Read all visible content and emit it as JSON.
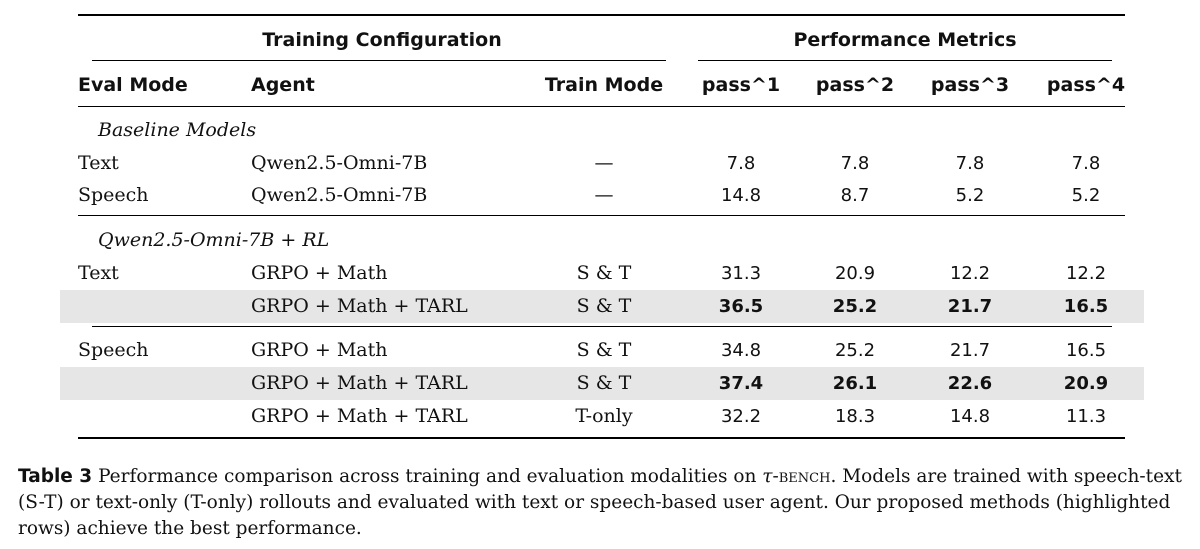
{
  "table": {
    "group_headers": [
      "Training Configuration",
      "Performance Metrics"
    ],
    "columns": [
      "Eval Mode",
      "Agent",
      "Train Mode",
      "pass^1",
      "pass^2",
      "pass^3",
      "pass^4"
    ],
    "sections": [
      {
        "title": "Baseline Models",
        "rows": [
          {
            "eval_mode": "Text",
            "agent": "Qwen2.5-Omni-7B",
            "train_mode": "—",
            "pass1": "7.8",
            "pass2": "7.8",
            "pass3": "7.8",
            "pass4": "7.8",
            "highlighted": false
          },
          {
            "eval_mode": "Speech",
            "agent": "Qwen2.5-Omni-7B",
            "train_mode": "—",
            "pass1": "14.8",
            "pass2": "8.7",
            "pass3": "5.2",
            "pass4": "5.2",
            "highlighted": false
          }
        ]
      },
      {
        "title": "Qwen2.5-Omni-7B + RL",
        "rows": [
          {
            "eval_mode": "Text",
            "agent": "GRPO + Math",
            "train_mode": "S & T",
            "pass1": "31.3",
            "pass2": "20.9",
            "pass3": "12.2",
            "pass4": "12.2",
            "highlighted": false
          },
          {
            "eval_mode": "",
            "agent": "GRPO + Math + TARL",
            "train_mode": "S & T",
            "pass1": "36.5",
            "pass2": "25.2",
            "pass3": "21.7",
            "pass4": "16.5",
            "highlighted": true
          },
          {
            "eval_mode": "Speech",
            "agent": "GRPO + Math",
            "train_mode": "S & T",
            "pass1": "34.8",
            "pass2": "25.2",
            "pass3": "21.7",
            "pass4": "16.5",
            "highlighted": false
          },
          {
            "eval_mode": "",
            "agent": "GRPO + Math + TARL",
            "train_mode": "S & T",
            "pass1": "37.4",
            "pass2": "26.1",
            "pass3": "22.6",
            "pass4": "20.9",
            "highlighted": true
          },
          {
            "eval_mode": "",
            "agent": "GRPO + Math + TARL",
            "train_mode": "T-only",
            "pass1": "32.2",
            "pass2": "18.3",
            "pass3": "14.8",
            "pass4": "11.3",
            "highlighted": false
          }
        ]
      }
    ],
    "highlight_color": "#e6e6e6"
  },
  "caption": {
    "label": "Table 3",
    "text_before": "Performance comparison across training and evaluation modalities on ",
    "tau": "τ",
    "bench": "-bench",
    "text_after": ". Models are trained with speech-text (S-T) or text-only (T-only) rollouts and evaluated with text or speech-based user agent. Our proposed methods (highlighted rows) achieve the best performance."
  }
}
